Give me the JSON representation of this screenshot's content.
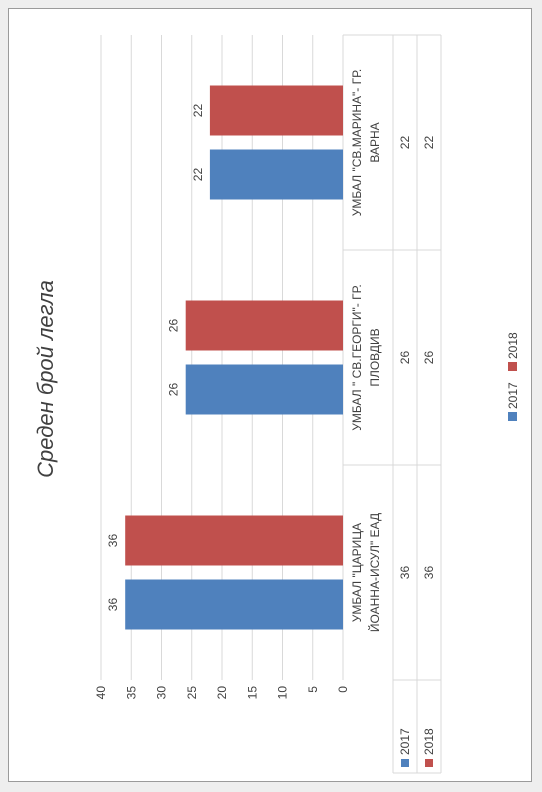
{
  "chart_data": {
    "type": "bar",
    "title": "Среден брой легла",
    "categories": [
      [
        "УМБАЛ \"ЦАРИЦА",
        "ЙОАННА-ИСУЛ\" ЕАД"
      ],
      [
        "УМБАЛ \" СВ.ГЕОРГИ\"- ГР.",
        "ПЛОВДИВ"
      ],
      [
        "УМБАЛ \"СВ.МАРИНА\"- ГР.",
        "ВАРНА"
      ]
    ],
    "series": [
      {
        "name": "2017",
        "color": "#4f81bd",
        "values": [
          36,
          26,
          22
        ]
      },
      {
        "name": "2018",
        "color": "#c0504d",
        "values": [
          36,
          26,
          22
        ]
      }
    ],
    "ylim": [
      0,
      40
    ],
    "yticks": [
      0,
      5,
      10,
      15,
      20,
      25,
      30,
      35,
      40
    ],
    "data_labels": true,
    "data_table": true,
    "grid": true,
    "legend": "bottom",
    "orientation": "rotated-90"
  }
}
